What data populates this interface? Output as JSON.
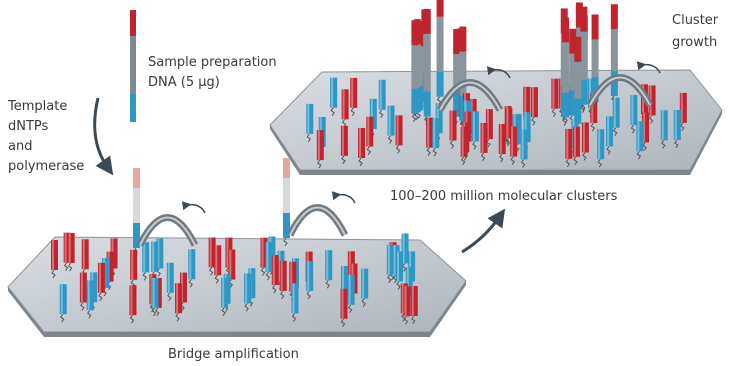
{
  "sample_label": [
    "Sample preparation",
    "DNA (5 μg)"
  ],
  "reagents_label": [
    "Template",
    "dNTPs",
    "and",
    "polymerase"
  ],
  "growth_label": [
    "Cluster",
    "growth"
  ],
  "clusters_caption": "100–200 million molecular clusters",
  "bridge_caption": "Bridge amplification"
}
